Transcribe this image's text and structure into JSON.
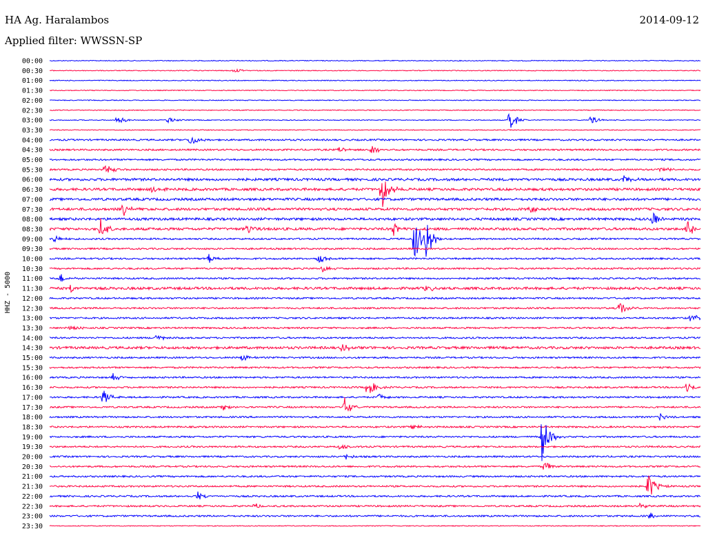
{
  "header": {
    "station": "HA Ag. Haralambos",
    "filter": "Applied filter: WWSSN-SP",
    "date": "2014-09-12"
  },
  "chart_data": {
    "type": "line",
    "title": "HA Ag. Haralambos",
    "subtitle": "Applied filter: WWSSN-SP",
    "ylabel": "HHZ - 5000",
    "colors": [
      "#0000ff",
      "#ff0040"
    ],
    "row_labels": [
      "00:00",
      "00:30",
      "01:00",
      "01:30",
      "02:00",
      "02:30",
      "03:00",
      "03:30",
      "04:00",
      "04:30",
      "05:00",
      "05:30",
      "06:00",
      "06:30",
      "07:00",
      "07:30",
      "08:00",
      "08:30",
      "09:00",
      "09:30",
      "10:00",
      "10:30",
      "11:00",
      "11:30",
      "12:00",
      "12:30",
      "13:00",
      "13:30",
      "14:00",
      "14:30",
      "15:00",
      "15:30",
      "16:00",
      "16:30",
      "17:00",
      "17:30",
      "18:00",
      "18:30",
      "19:00",
      "19:30",
      "20:00",
      "20:30",
      "21:00",
      "21:30",
      "22:00",
      "22:30",
      "23:00",
      "23:30"
    ],
    "noise_levels": [
      1,
      1,
      1,
      1,
      1,
      1,
      1,
      1,
      2,
      2,
      2,
      2,
      3,
      3,
      3,
      3,
      3,
      3,
      2,
      2,
      2,
      2,
      2,
      3,
      2,
      2,
      2,
      2,
      2,
      3,
      2,
      2,
      2,
      2,
      2,
      2,
      2,
      2,
      2,
      2,
      2,
      2,
      2,
      2,
      2,
      2,
      2,
      1
    ],
    "events": [
      {
        "row": 1,
        "minute": 9.0,
        "amp": 5
      },
      {
        "row": 6,
        "minute": 3.3,
        "amp": 8
      },
      {
        "row": 6,
        "minute": 5.8,
        "amp": 6
      },
      {
        "row": 6,
        "minute": 22.6,
        "amp": 18
      },
      {
        "row": 6,
        "minute": 26.6,
        "amp": 8
      },
      {
        "row": 8,
        "minute": 6.9,
        "amp": 10
      },
      {
        "row": 9,
        "minute": 14.2,
        "amp": 5
      },
      {
        "row": 9,
        "minute": 15.8,
        "amp": 10
      },
      {
        "row": 11,
        "minute": 2.7,
        "amp": 12
      },
      {
        "row": 11,
        "minute": 30.0,
        "amp": 6
      },
      {
        "row": 12,
        "minute": 28.2,
        "amp": 8
      },
      {
        "row": 13,
        "minute": 5.0,
        "amp": 6
      },
      {
        "row": 13,
        "minute": 16.3,
        "amp": 34
      },
      {
        "row": 15,
        "minute": 3.6,
        "amp": 10
      },
      {
        "row": 15,
        "minute": 23.6,
        "amp": 6
      },
      {
        "row": 16,
        "minute": 29.6,
        "amp": 14
      },
      {
        "row": 17,
        "minute": 2.5,
        "amp": 16
      },
      {
        "row": 17,
        "minute": 9.7,
        "amp": 8
      },
      {
        "row": 17,
        "minute": 16.9,
        "amp": 10
      },
      {
        "row": 17,
        "minute": 31.3,
        "amp": 20
      },
      {
        "row": 18,
        "minute": 17.9,
        "amp": 40
      },
      {
        "row": 18,
        "minute": 18.5,
        "amp": 32
      },
      {
        "row": 18,
        "minute": 0.2,
        "amp": 6
      },
      {
        "row": 20,
        "minute": 7.8,
        "amp": 8
      },
      {
        "row": 20,
        "minute": 13.2,
        "amp": 10
      },
      {
        "row": 21,
        "minute": 13.4,
        "amp": 6
      },
      {
        "row": 22,
        "minute": 0.5,
        "amp": 8
      },
      {
        "row": 23,
        "minute": 1.0,
        "amp": 6
      },
      {
        "row": 23,
        "minute": 18.5,
        "amp": 6
      },
      {
        "row": 25,
        "minute": 28.0,
        "amp": 14
      },
      {
        "row": 26,
        "minute": 31.5,
        "amp": 8
      },
      {
        "row": 27,
        "minute": 1.0,
        "amp": 6
      },
      {
        "row": 28,
        "minute": 5.2,
        "amp": 6
      },
      {
        "row": 29,
        "minute": 14.4,
        "amp": 6
      },
      {
        "row": 30,
        "minute": 9.4,
        "amp": 6
      },
      {
        "row": 32,
        "minute": 3.1,
        "amp": 6
      },
      {
        "row": 33,
        "minute": 15.6,
        "amp": 18
      },
      {
        "row": 33,
        "minute": 31.3,
        "amp": 10
      },
      {
        "row": 34,
        "minute": 2.6,
        "amp": 14
      },
      {
        "row": 34,
        "minute": 16.2,
        "amp": 6
      },
      {
        "row": 35,
        "minute": 14.5,
        "amp": 14
      },
      {
        "row": 35,
        "minute": 8.5,
        "amp": 6
      },
      {
        "row": 36,
        "minute": 30.0,
        "amp": 6
      },
      {
        "row": 37,
        "minute": 17.8,
        "amp": 6
      },
      {
        "row": 38,
        "minute": 24.2,
        "amp": 40
      },
      {
        "row": 39,
        "minute": 14.3,
        "amp": 5
      },
      {
        "row": 40,
        "minute": 14.5,
        "amp": 6
      },
      {
        "row": 41,
        "minute": 24.3,
        "amp": 10
      },
      {
        "row": 43,
        "minute": 29.4,
        "amp": 26
      },
      {
        "row": 44,
        "minute": 7.2,
        "amp": 8
      },
      {
        "row": 45,
        "minute": 10.0,
        "amp": 5
      },
      {
        "row": 45,
        "minute": 29.0,
        "amp": 6
      },
      {
        "row": 46,
        "minute": 29.5,
        "amp": 5
      }
    ]
  }
}
